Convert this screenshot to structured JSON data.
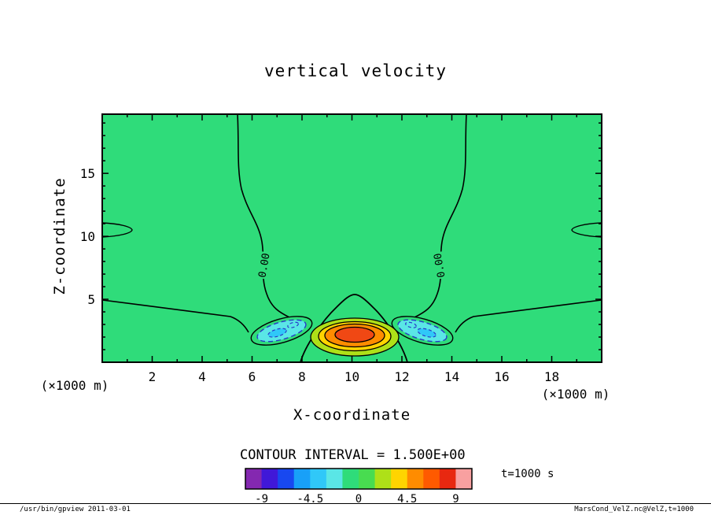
{
  "palette": {
    "page_bg": "#FFFFFF",
    "plot_bg": "#2FDC7A",
    "contour_line": "#000000",
    "negative_contour": "#2838C8",
    "lobe_fill": "#5AE6E6",
    "lobe_inner_fill": "#30C8F8",
    "band_yellow_green": "#AEE018",
    "band_yellow": "#FFD400",
    "band_orange": "#FF8C00",
    "band_red": "#F04814"
  },
  "chart_data": {
    "type": "contour",
    "title": "vertical velocity",
    "xlabel": "X-coordinate",
    "ylabel": "Z-coordinate",
    "x_unit_label": "(×1000 m)",
    "y_unit_label": "(×1000 m)",
    "x_range": [
      0,
      20
    ],
    "z_range": [
      0,
      19.7
    ],
    "x_ticks": [
      2,
      4,
      6,
      8,
      10,
      12,
      14,
      16,
      18
    ],
    "z_ticks": [
      5,
      10,
      15
    ],
    "contour_interval": 1.5,
    "contour_interval_label": "CONTOUR INTERVAL = 1.500E+00",
    "time_label": "t=1000 s",
    "zero_contour_label": "0.00",
    "colorbar": {
      "min": -10.5,
      "max": 10.5,
      "tick_values": [
        -9,
        -4.5,
        0,
        4.5,
        9
      ],
      "tick_labels": [
        "-9",
        "-4.5",
        "0",
        "4.5",
        "9"
      ],
      "colors": [
        "#8428B0",
        "#4018D8",
        "#1848F0",
        "#18A0F8",
        "#30C8F8",
        "#5AE6E6",
        "#2FDC7A",
        "#48DC50",
        "#AEE018",
        "#FFD400",
        "#FF8C00",
        "#FF5A00",
        "#E82810",
        "#F8A0A0"
      ]
    },
    "features": {
      "updraft_core": {
        "x": 10,
        "z": 2,
        "peak_value_approx": 7.5
      },
      "downdraft_left": {
        "x": 7.3,
        "z": 2.5,
        "min_value_approx": -4
      },
      "downdraft_right": {
        "x": 12.7,
        "z": 2.5,
        "min_value_approx": -4
      },
      "far_field_value": 0
    }
  },
  "footer": {
    "left": "/usr/bin/gpview  2011-03-01",
    "right": "MarsCond_VelZ.nc@VelZ,t=1000"
  }
}
